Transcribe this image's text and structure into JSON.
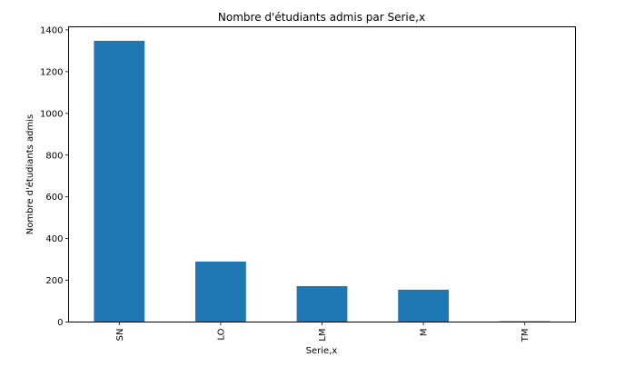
{
  "chart_data": {
    "type": "bar",
    "title": "Nombre d'étudiants admis par Serie,x",
    "xlabel": "Serie,x",
    "ylabel": "Nombre d'étudiants admis",
    "categories": [
      "SN",
      "LO",
      "LM",
      "M",
      "TM"
    ],
    "values": [
      1348,
      290,
      172,
      155,
      4
    ],
    "ylim": [
      0,
      1415
    ],
    "yticks": [
      0,
      200,
      400,
      600,
      800,
      1000,
      1200,
      1400
    ],
    "grid": false,
    "bar_color": "#1f77b4",
    "x_tick_rotation": "vertical"
  }
}
